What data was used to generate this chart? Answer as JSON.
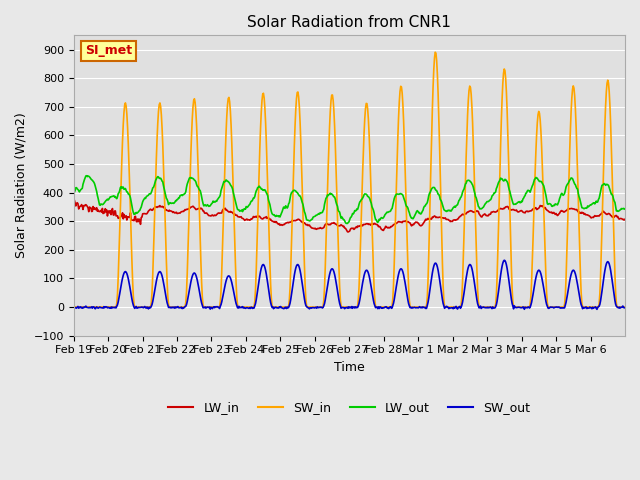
{
  "title": "Solar Radiation from CNR1",
  "xlabel": "Time",
  "ylabel": "Solar Radiation (W/m2)",
  "ylim": [
    -100,
    950
  ],
  "yticks": [
    -100,
    0,
    100,
    200,
    300,
    400,
    500,
    600,
    700,
    800,
    900
  ],
  "legend_labels": [
    "LW_in",
    "SW_in",
    "LW_out",
    "SW_out"
  ],
  "legend_colors": [
    "#cc0000",
    "#ffa500",
    "#00cc00",
    "#0000cc"
  ],
  "annotation_text": "SI_met",
  "annotation_color": "#cc0000",
  "annotation_bg": "#ffff99",
  "annotation_border": "#cc6600",
  "bg_color": "#e8e8e8",
  "plot_bg_color": "#e0e0e0",
  "x_tick_labels": [
    "Feb 19",
    "Feb 20",
    "Feb 21",
    "Feb 22",
    "Feb 23",
    "Feb 24",
    "Feb 25",
    "Feb 26",
    "Feb 27",
    "Feb 28",
    "Mar 1",
    "Mar 2",
    "Mar 3",
    "Mar 4",
    "Mar 5",
    "Mar 6"
  ],
  "n_days": 16,
  "pts_per_day": 48
}
